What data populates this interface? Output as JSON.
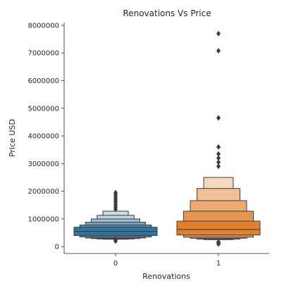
{
  "chart_data": {
    "type": "boxen",
    "title": "Renovations Vs Price",
    "xlabel": "Renovations",
    "ylabel": "Price USD",
    "categories": [
      "0",
      "1"
    ],
    "ylim": [
      -250000,
      8100000
    ],
    "yticks": [
      0,
      1000000,
      2000000,
      3000000,
      4000000,
      5000000,
      6000000,
      7000000,
      8000000
    ],
    "ytick_labels": [
      "0",
      "1000000",
      "2000000",
      "3000000",
      "4000000",
      "5000000",
      "6000000",
      "7000000",
      "8000000"
    ],
    "grid": false,
    "colors": {
      "0": "#3274a1",
      "1": "#e1812c",
      "outline": "#3c3c3c"
    },
    "series": [
      {
        "category": "0",
        "median": 550000,
        "boxes": [
          {
            "low": 400000,
            "high": 700000
          },
          {
            "low": 350000,
            "high": 780000
          },
          {
            "low": 310000,
            "high": 880000
          },
          {
            "low": 290000,
            "high": 1000000
          },
          {
            "low": 275000,
            "high": 1130000
          },
          {
            "low": 265000,
            "high": 1280000
          }
        ],
        "outliers": [
          200000,
          250000,
          1350000,
          1420000,
          1500000,
          1580000,
          1650000,
          1720000,
          1800000,
          1880000,
          1950000
        ]
      },
      {
        "category": "1",
        "median": 620000,
        "boxes": [
          {
            "low": 420000,
            "high": 920000
          },
          {
            "low": 340000,
            "high": 1280000
          },
          {
            "low": 300000,
            "high": 1660000
          },
          {
            "low": 270000,
            "high": 2100000
          },
          {
            "low": 250000,
            "high": 2500000
          }
        ],
        "outliers": [
          90000,
          130000,
          170000,
          2900000,
          3050000,
          3200000,
          3350000,
          3600000,
          4650000,
          7080000,
          7700000
        ]
      }
    ]
  }
}
